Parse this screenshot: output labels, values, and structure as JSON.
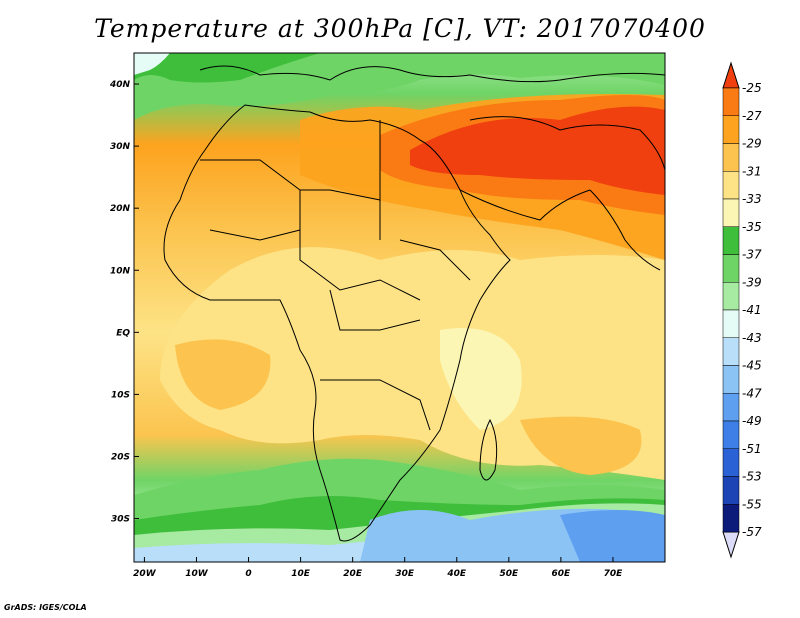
{
  "title": "Temperature at 300hPa [C], VT: 2017070400",
  "credit": "GrADS: IGES/COLA",
  "map": {
    "lat_labels": [
      "40N",
      "30N",
      "20N",
      "10N",
      "EQ",
      "10S",
      "20S",
      "30S"
    ],
    "lat_values": [
      40,
      30,
      20,
      10,
      0,
      -10,
      -20,
      -30
    ],
    "lon_labels": [
      "20W",
      "10W",
      "0",
      "10E",
      "20E",
      "30E",
      "40E",
      "50E",
      "60E",
      "70E"
    ],
    "lon_values": [
      -20,
      -10,
      0,
      10,
      20,
      30,
      40,
      50,
      60,
      70
    ],
    "lon_range": [
      -22,
      80
    ],
    "lat_range": [
      -37,
      45
    ]
  },
  "colorbar": {
    "labels": [
      "-25",
      "-27",
      "-29",
      "-31",
      "-33",
      "-35",
      "-37",
      "-39",
      "-41",
      "-43",
      "-45",
      "-47",
      "-49",
      "-51",
      "-53",
      "-55",
      "-57"
    ],
    "colors": [
      "#f0400f",
      "#fa7a14",
      "#fda31f",
      "#fcc44f",
      "#fde386",
      "#fbf6b3",
      "#3fbe3c",
      "#6fd466",
      "#a7eaa2",
      "#e4fbf6",
      "#b8def9",
      "#8cc3f5",
      "#5f9ff0",
      "#3d7fe7",
      "#2a61d4",
      "#1c44b5",
      "#0c1a7a"
    ]
  }
}
